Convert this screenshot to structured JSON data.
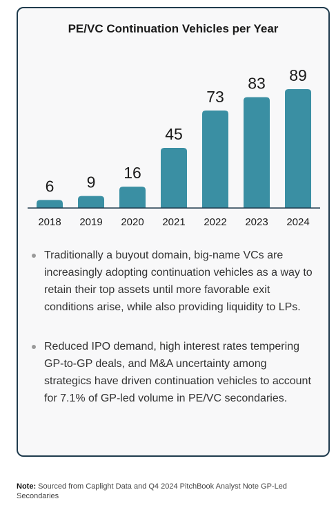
{
  "title": "PE/VC Continuation Vehicles per Year",
  "chart_data": {
    "type": "bar",
    "title": "PE/VC Continuation Vehicles per Year",
    "categories": [
      "2018",
      "2019",
      "2020",
      "2021",
      "2022",
      "2023",
      "2024"
    ],
    "values": [
      6,
      9,
      16,
      45,
      73,
      83,
      89
    ],
    "xlabel": "",
    "ylabel": "",
    "ylim": [
      0,
      89
    ],
    "grid": false,
    "legend": "none",
    "bar_color": "#3a8fa3"
  },
  "bullets": [
    "Traditionally a buyout domain, big-name VCs are increasingly adopting continuation vehicles as a way to retain their top assets until more favorable exit conditions arise, while also providing liquidity to LPs.",
    "Reduced IPO demand, high interest rates tempering GP-to-GP deals, and M&A uncertainty among strategics have driven continuation vehicles to account for 7.1% of GP-led volume in PE/VC secondaries."
  ],
  "note": {
    "label": "Note:",
    "text": " Sourced from Caplight Data and Q4 2024 PitchBook Analyst Note GP-Led Secondaries"
  }
}
